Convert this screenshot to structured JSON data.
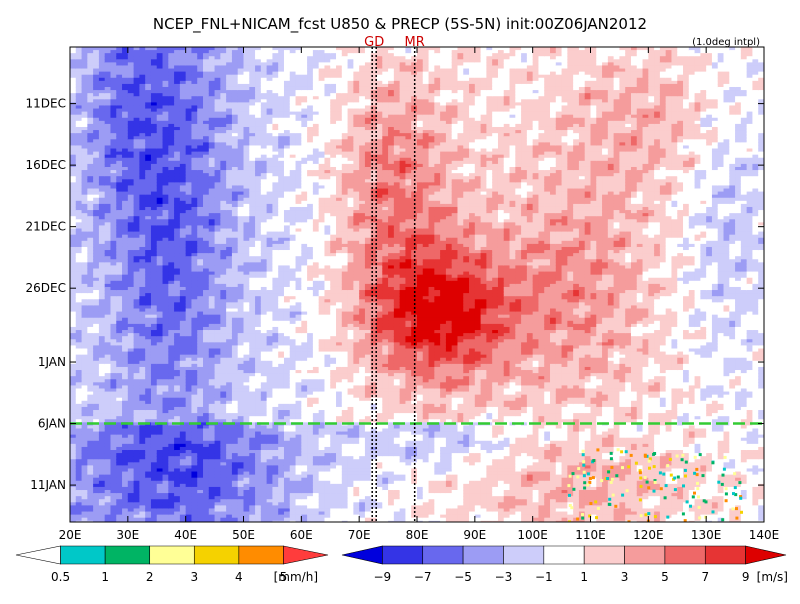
{
  "header": {
    "title": "NCEP_FNL+NICAM_fcst U850 & PRECP (5S-5N) init:00Z06JAN2012",
    "interp_note": "(1.0deg intpl)"
  },
  "chart_data": {
    "type": "heatmap",
    "title": "NCEP_FNL+NICAM_fcst U850 & PRECP (5S-5N) init:00Z06JAN2012",
    "x_range": [
      20,
      140
    ],
    "x_ticks": [
      "20E",
      "30E",
      "40E",
      "50E",
      "60E",
      "70E",
      "80E",
      "90E",
      "100E",
      "110E",
      "120E",
      "130E",
      "140E"
    ],
    "y_ticks": [
      {
        "label": "11DEC",
        "day": 10
      },
      {
        "label": "16DEC",
        "day": 15
      },
      {
        "label": "21DEC",
        "day": 20
      },
      {
        "label": "26DEC",
        "day": 25
      },
      {
        "label": "1JAN",
        "day": 31
      },
      {
        "label": "6JAN",
        "day": 36
      },
      {
        "label": "11JAN",
        "day": 41
      }
    ],
    "y_range_days": [
      5.4,
      44
    ],
    "init_line_day": 36,
    "markers": [
      {
        "label": "GD",
        "lon": 72.6
      },
      {
        "label": "MR",
        "lon": 79.6
      }
    ],
    "u850_colorbar": {
      "unit": "[m/s]",
      "levels": [
        -9,
        -7,
        -5,
        -3,
        -1,
        1,
        3,
        5,
        7,
        9
      ],
      "colors": [
        "#0000dd",
        "#3434e6",
        "#6868ee",
        "#9c9cf4",
        "#cdcdfa",
        "#ffffff",
        "#fbcdcd",
        "#f59c9c",
        "#ee6868",
        "#e63434",
        "#dd0000"
      ]
    },
    "precip_colorbar": {
      "unit": "[mm/h]",
      "levels": [
        0.5,
        1,
        2,
        3,
        4,
        5
      ],
      "colors": [
        "#ffffff",
        "#00c8c8",
        "#00b464",
        "#ffff96",
        "#f5d200",
        "#ff8c00",
        "#ff3c3c"
      ]
    }
  }
}
